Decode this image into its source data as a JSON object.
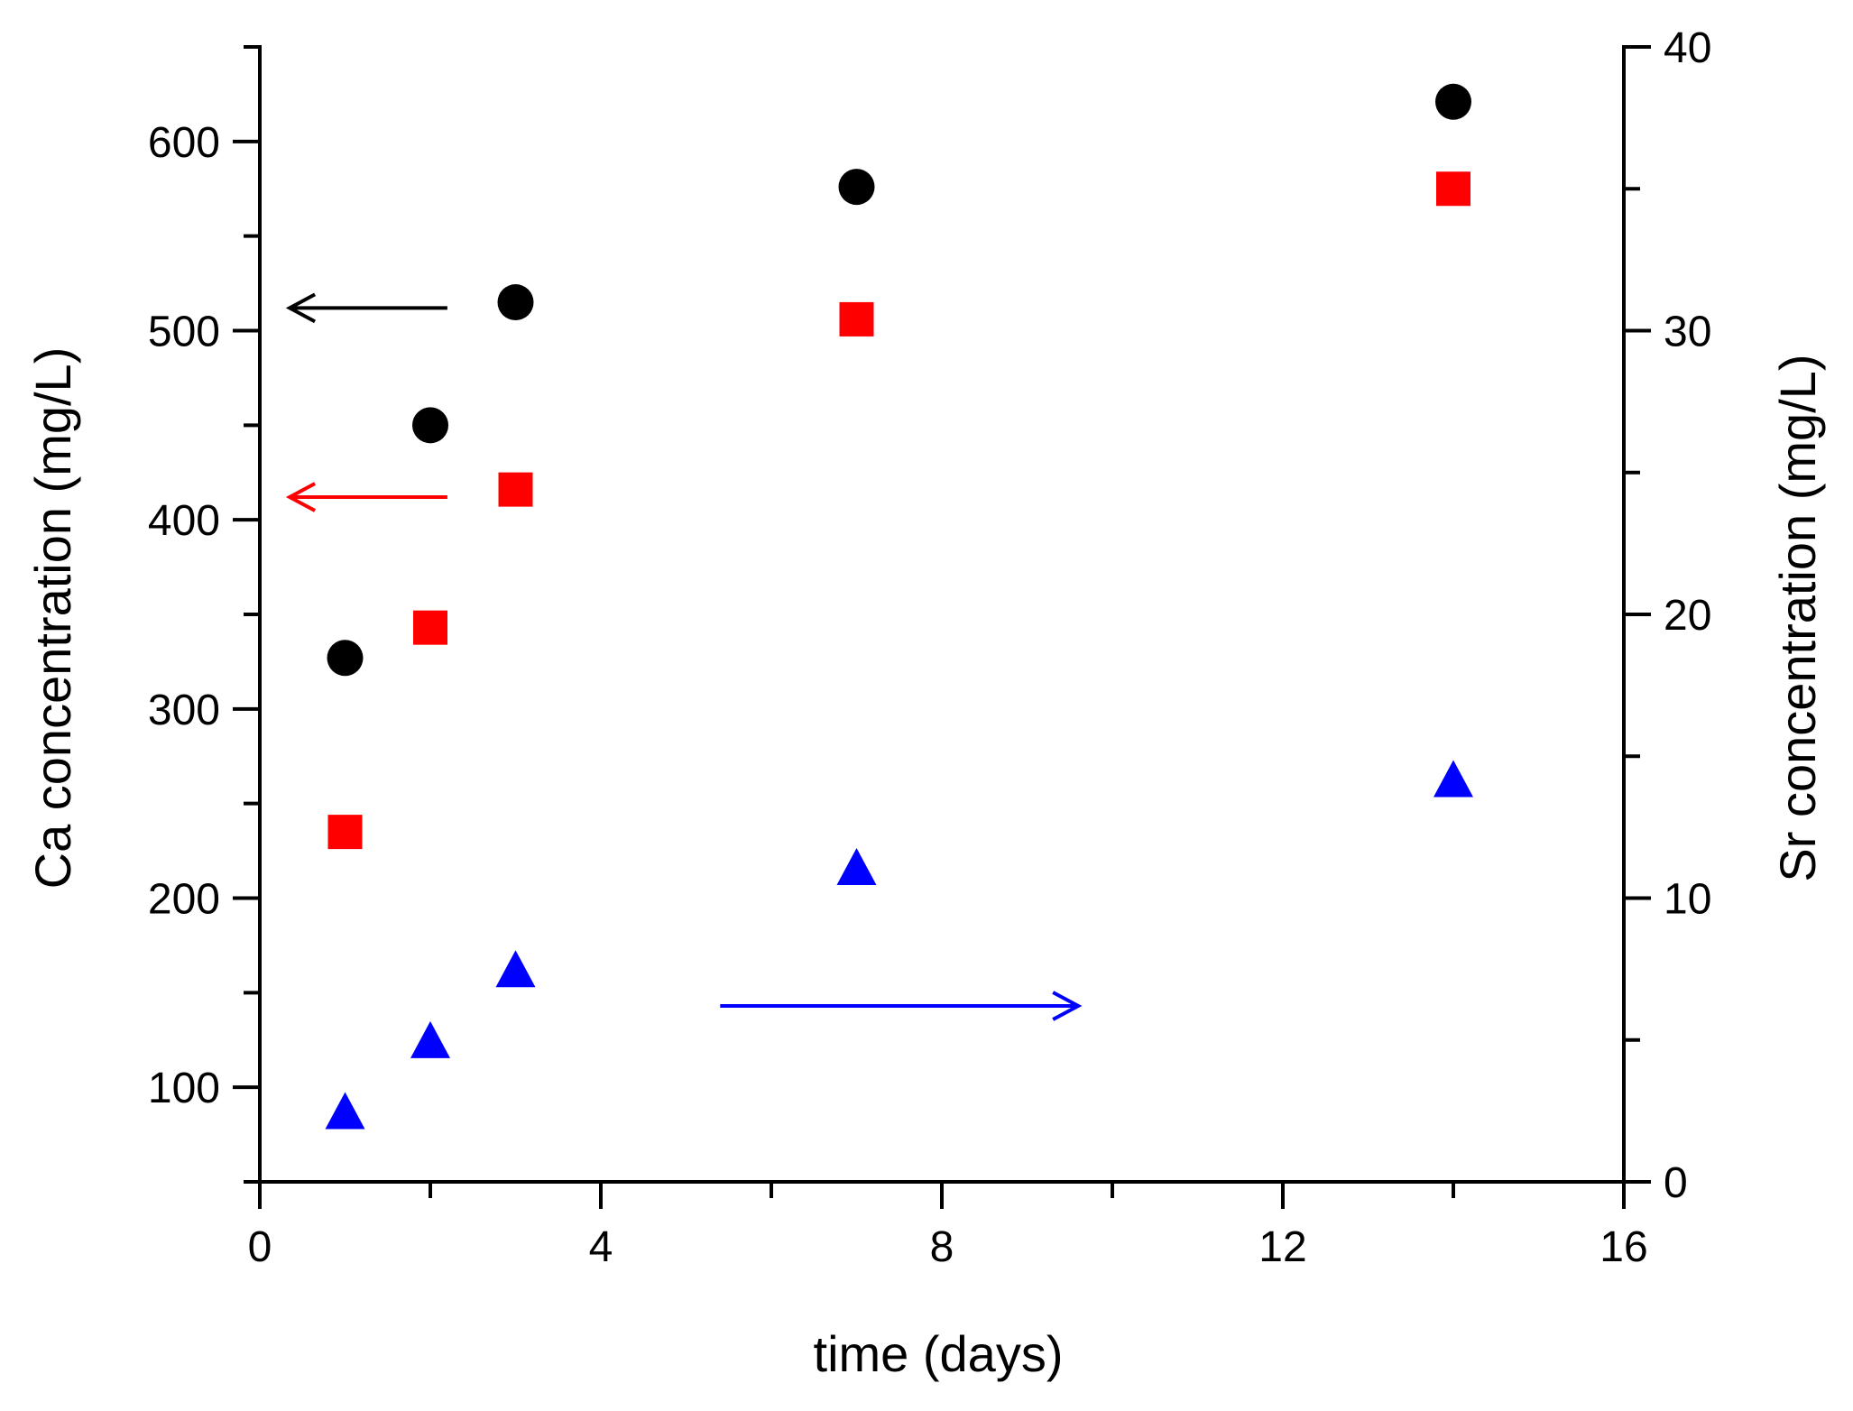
{
  "chart_data": {
    "type": "scatter",
    "title": "",
    "xlabel": "time (days)",
    "ylabel_left": "Ca concentration (mg/L)",
    "ylabel_right": "Sr concentration (mg/L)",
    "xlim": [
      0,
      16
    ],
    "ylim_left": [
      50,
      650
    ],
    "ylim_right": [
      0,
      40
    ],
    "x_ticks": [
      0,
      4,
      8,
      12,
      16
    ],
    "x_tick_labels": [
      "0",
      "4",
      "8",
      "12",
      "16"
    ],
    "x_minor_step": 2,
    "y_left_ticks": [
      100,
      200,
      300,
      400,
      500,
      600
    ],
    "y_left_tick_labels": [
      "100",
      "200",
      "300",
      "400",
      "500",
      "600"
    ],
    "y_left_minor_step": 50,
    "y_right_ticks": [
      0,
      10,
      20,
      30,
      40
    ],
    "y_right_tick_labels": [
      "0",
      "10",
      "20",
      "30",
      "40"
    ],
    "y_right_minor_step": 5,
    "grid": false,
    "series": [
      {
        "name": "Ca (black circles)",
        "axis": "left",
        "marker": "circle",
        "color": "#000000",
        "x": [
          1,
          2,
          3,
          7,
          14
        ],
        "values": [
          327,
          450,
          515,
          576,
          621
        ]
      },
      {
        "name": "Ca (red squares)",
        "axis": "left",
        "marker": "square",
        "color": "#ff0000",
        "x": [
          1,
          2,
          3,
          7,
          14
        ],
        "values": [
          235,
          343,
          416,
          506,
          575
        ]
      },
      {
        "name": "Sr (blue triangles)",
        "axis": "right",
        "marker": "triangle",
        "color": "#0000ff",
        "x": [
          1,
          2,
          3,
          7,
          14
        ],
        "values": [
          2.4,
          4.9,
          7.4,
          11.0,
          14.1
        ]
      }
    ],
    "annotations": [
      {
        "type": "arrow",
        "color": "#000000",
        "axis": "left",
        "from": [
          2.2,
          512
        ],
        "to": [
          0.35,
          512
        ],
        "meaning": "black series uses left axis"
      },
      {
        "type": "arrow",
        "color": "#ff0000",
        "axis": "left",
        "from": [
          2.2,
          412
        ],
        "to": [
          0.35,
          412
        ],
        "meaning": "red series uses left axis"
      },
      {
        "type": "arrow",
        "color": "#0000ff",
        "axis": "right",
        "from": [
          5.4,
          6.2
        ],
        "to": [
          9.6,
          6.2
        ],
        "meaning": "blue series uses right axis"
      }
    ]
  }
}
